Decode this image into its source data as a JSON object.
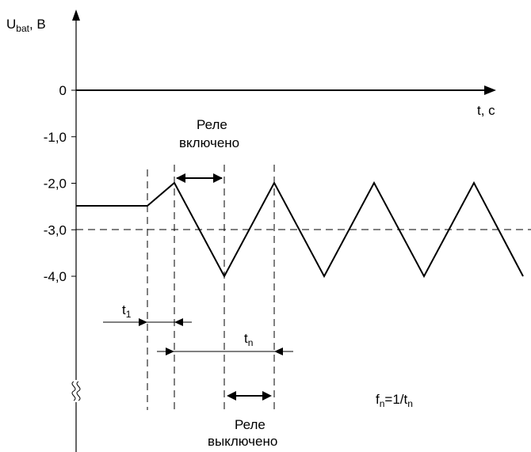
{
  "axis": {
    "y_label_main": "U",
    "y_label_sub": "bat",
    "y_label_unit": ", В",
    "x_label": "t, с"
  },
  "y_ticks": [
    {
      "value": 0,
      "label": "0"
    },
    {
      "value": -1,
      "label": "-1,0"
    },
    {
      "value": -2,
      "label": "-2,0"
    },
    {
      "value": -3,
      "label": "-3,0"
    },
    {
      "value": -4,
      "label": "-4,0"
    }
  ],
  "annotations": {
    "relay_on_line1": "Реле",
    "relay_on_line2": "включено",
    "relay_off_line1": "Реле",
    "relay_off_line2": "выключено",
    "t1_main": "t",
    "t1_sub": "1",
    "tn_main": "t",
    "tn_sub": "n",
    "freq_f": "f",
    "freq_sub": "n",
    "freq_eq": "=1/t",
    "freq_sub2": "n"
  },
  "waveform": {
    "threshold": -3.0,
    "upper": -2.0,
    "lower": -4.0,
    "initial": -2.5
  }
}
